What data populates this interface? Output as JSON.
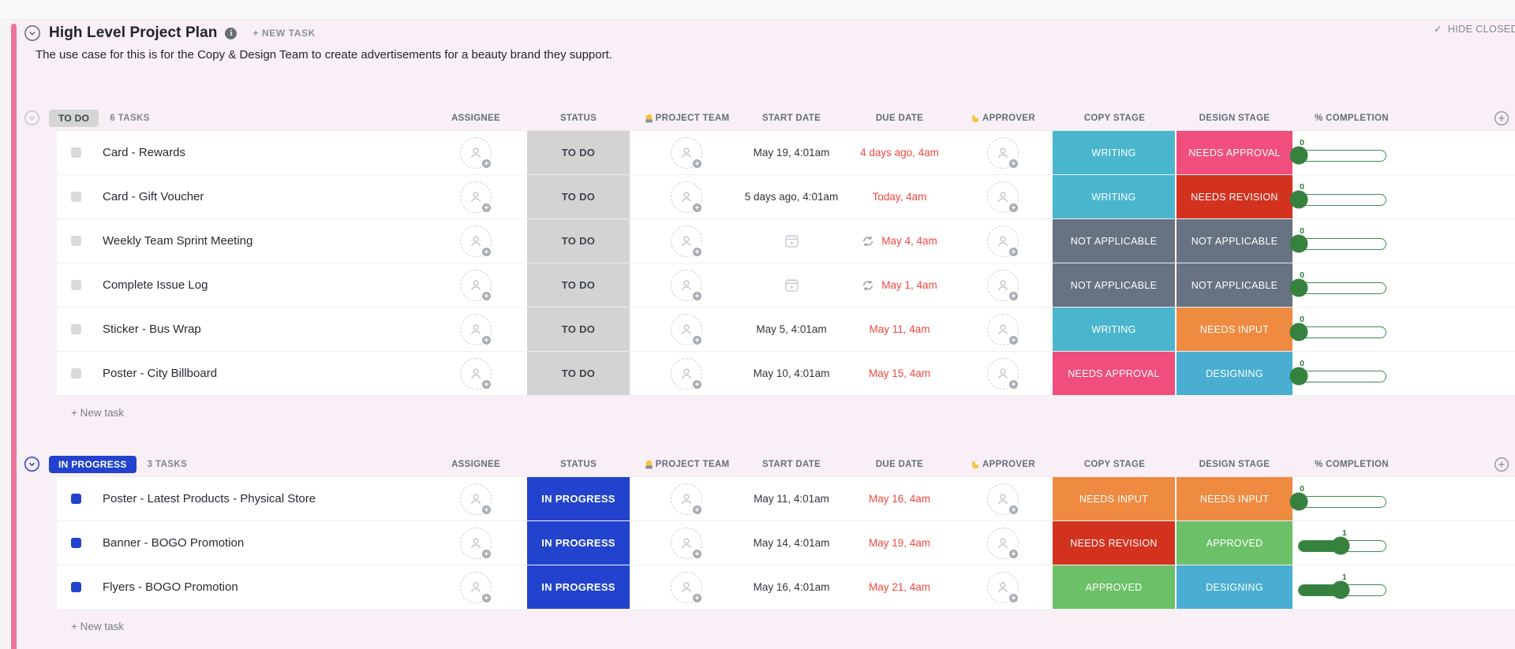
{
  "header": {
    "title": "High Level Project Plan",
    "new_task_label": "+ NEW TASK",
    "hide_closed_label": "HIDE CLOSED",
    "hide_closed_check": "✓",
    "description": "The use case for this is for the Copy & Design Team to create advertisements for a beauty brand they support."
  },
  "columns": [
    {
      "key": "assignee",
      "label": "ASSIGNEE"
    },
    {
      "key": "status",
      "label": "STATUS"
    },
    {
      "key": "team",
      "label": "PROJECT TEAM",
      "emoji": "technologist"
    },
    {
      "key": "start",
      "label": "START DATE"
    },
    {
      "key": "due",
      "label": "DUE DATE"
    },
    {
      "key": "approver",
      "label": "APPROVER",
      "emoji": "flexed-biceps"
    },
    {
      "key": "copy",
      "label": "COPY STAGE"
    },
    {
      "key": "design",
      "label": "DESIGN STAGE"
    },
    {
      "key": "completion",
      "label": "% COMPLETION"
    }
  ],
  "stage_colors": {
    "WRITING": "#4ab6cd",
    "DESIGNING": "#49aed2",
    "NEEDS APPROVAL": "#f04e7d",
    "NEEDS REVISION": "#d3321f",
    "NOT APPLICABLE": "#677282",
    "NEEDS INPUT": "#ee8b41",
    "APPROVED": "#6cc067"
  },
  "slider": {
    "track_border": "#3e8d4c",
    "fill": "#37813f",
    "label_color": "#2f7d3b"
  },
  "dates": {
    "overdue_color": "#f0483f",
    "normal_color": "#30353c"
  },
  "groups": [
    {
      "id": "todo",
      "label": "TO DO",
      "count": "6 TASKS",
      "badge_bg": "#d5d5d5",
      "badge_color": "#3f4650",
      "status_cell_bg": "#d3d3d3",
      "status_cell_color": "#40454d",
      "checkbox_color": "#d9d9d9",
      "chevron_color": "#c3c8cf",
      "new_task_label": "+ New task",
      "tasks": [
        {
          "name": "Card - Rewards",
          "start": {
            "type": "text",
            "text": "May 19, 4:01am"
          },
          "due": {
            "text": "4 days ago, 4am",
            "overdue": true,
            "recurring": false
          },
          "copy": "WRITING",
          "design": "NEEDS APPROVAL",
          "completion": {
            "label": "0",
            "percent": 0
          }
        },
        {
          "name": "Card - Gift Voucher",
          "start": {
            "type": "text",
            "text": "5 days ago, 4:01am"
          },
          "due": {
            "text": "Today, 4am",
            "overdue": true,
            "recurring": false
          },
          "copy": "WRITING",
          "design": "NEEDS REVISION",
          "completion": {
            "label": "0",
            "percent": 0
          }
        },
        {
          "name": "Weekly Team Sprint Meeting",
          "start": {
            "type": "icon"
          },
          "due": {
            "text": "May 4, 4am",
            "overdue": true,
            "recurring": true
          },
          "copy": "NOT APPLICABLE",
          "design": "NOT APPLICABLE",
          "completion": {
            "label": "0",
            "percent": 0
          }
        },
        {
          "name": "Complete Issue Log",
          "start": {
            "type": "icon"
          },
          "due": {
            "text": "May 1, 4am",
            "overdue": true,
            "recurring": true
          },
          "copy": "NOT APPLICABLE",
          "design": "NOT APPLICABLE",
          "completion": {
            "label": "0",
            "percent": 0
          }
        },
        {
          "name": "Sticker - Bus Wrap",
          "start": {
            "type": "text",
            "text": "May 5, 4:01am"
          },
          "due": {
            "text": "May 11, 4am",
            "overdue": true,
            "recurring": false
          },
          "copy": "WRITING",
          "design": "NEEDS INPUT",
          "completion": {
            "label": "0",
            "percent": 0
          }
        },
        {
          "name": "Poster - City Billboard",
          "start": {
            "type": "text",
            "text": "May 10, 4:01am"
          },
          "due": {
            "text": "May 15, 4am",
            "overdue": true,
            "recurring": false
          },
          "copy": "NEEDS APPROVAL",
          "design": "DESIGNING",
          "completion": {
            "label": "0",
            "percent": 0
          }
        }
      ]
    },
    {
      "id": "inprogress",
      "label": "IN PROGRESS",
      "count": "3 TASKS",
      "badge_bg": "#2243cd",
      "badge_color": "#ffffff",
      "status_cell_bg": "#2243cd",
      "status_cell_color": "#ffffff",
      "checkbox_color": "#2243cd",
      "chevron_color": "#2243cd",
      "new_task_label": "+ New task",
      "tasks": [
        {
          "name": "Poster - Latest Products - Physical Store",
          "start": {
            "type": "text",
            "text": "May 11, 4:01am"
          },
          "due": {
            "text": "May 16, 4am",
            "overdue": true,
            "recurring": false
          },
          "copy": "NEEDS INPUT",
          "design": "NEEDS INPUT",
          "completion": {
            "label": "0",
            "percent": 0
          }
        },
        {
          "name": "Banner - BOGO Promotion",
          "start": {
            "type": "text",
            "text": "May 14, 4:01am"
          },
          "due": {
            "text": "May 19, 4am",
            "overdue": true,
            "recurring": false
          },
          "copy": "NEEDS REVISION",
          "design": "APPROVED",
          "completion": {
            "label": "1",
            "percent": 48
          }
        },
        {
          "name": "Flyers - BOGO Promotion",
          "start": {
            "type": "text",
            "text": "May 16, 4:01am"
          },
          "due": {
            "text": "May 21, 4am",
            "overdue": true,
            "recurring": false
          },
          "copy": "APPROVED",
          "design": "DESIGNING",
          "completion": {
            "label": "1",
            "percent": 48
          }
        }
      ]
    }
  ]
}
